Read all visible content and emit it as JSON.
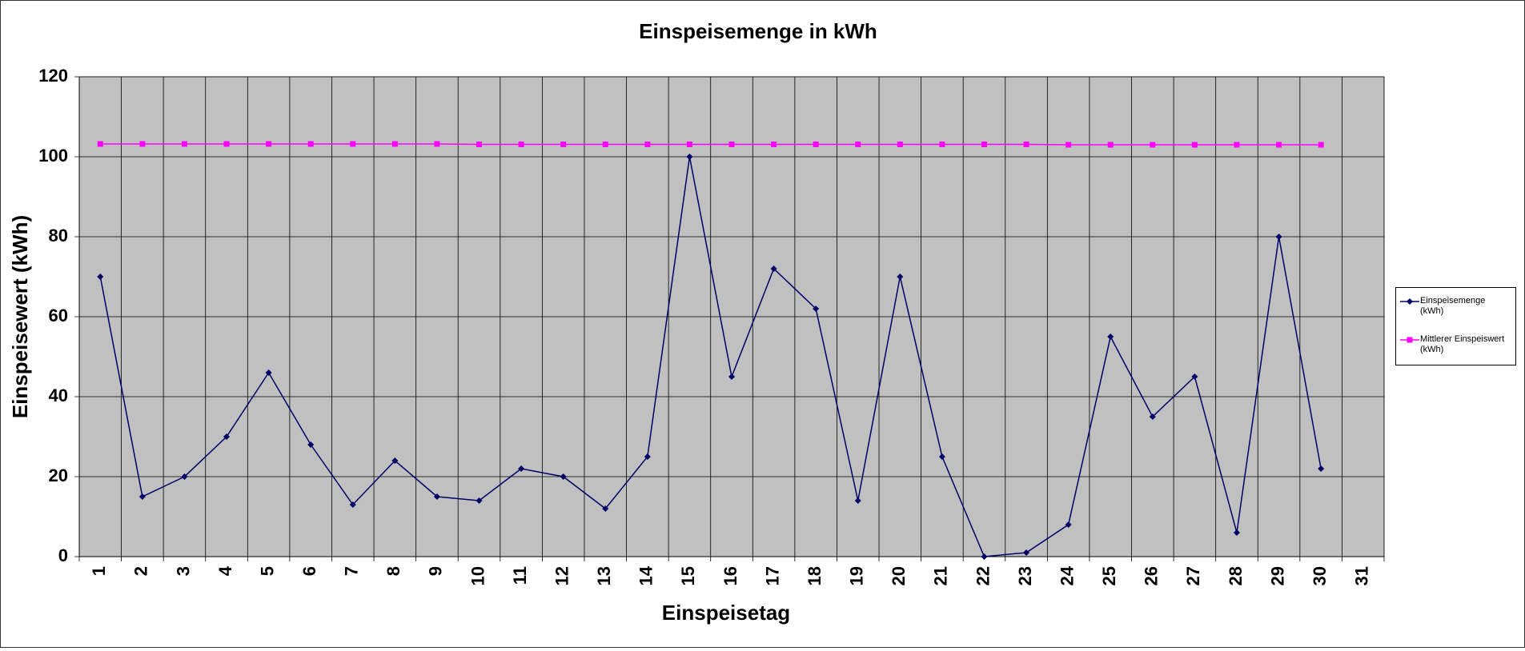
{
  "chart_data": {
    "type": "line",
    "title": "Einspeisemenge in kWh",
    "xlabel": "Einspeisetag",
    "ylabel": "Einspeisewert  (kWh)",
    "categories": [
      "1",
      "2",
      "3",
      "4",
      "5",
      "6",
      "7",
      "8",
      "9",
      "10",
      "11",
      "12",
      "13",
      "14",
      "15",
      "16",
      "17",
      "18",
      "19",
      "20",
      "21",
      "22",
      "23",
      "24",
      "25",
      "26",
      "27",
      "28",
      "29",
      "30",
      "31"
    ],
    "series": [
      {
        "name": "Einspeisemenge (kWh)",
        "color": "#000066",
        "marker": "diamond",
        "values": [
          70,
          15,
          20,
          30,
          46,
          28,
          13,
          24,
          15,
          14,
          22,
          20,
          12,
          25,
          100,
          45,
          72,
          62,
          14,
          70,
          25,
          0,
          1,
          8,
          55,
          35,
          45,
          6,
          80,
          22,
          null
        ]
      },
      {
        "name": "Mittlerer Einspeiswert (kWh)",
        "color": "#ff00ff",
        "marker": "square",
        "values": [
          103.2,
          103.2,
          103.2,
          103.2,
          103.2,
          103.2,
          103.2,
          103.2,
          103.2,
          103.1,
          103.1,
          103.1,
          103.1,
          103.1,
          103.1,
          103.1,
          103.1,
          103.1,
          103.1,
          103.1,
          103.1,
          103.1,
          103.1,
          103.0,
          103.0,
          103.0,
          103.0,
          103.0,
          103.0,
          103.0,
          null
        ]
      }
    ],
    "ylim": [
      0,
      120
    ],
    "yticks": [
      0,
      20,
      40,
      60,
      80,
      100,
      120
    ],
    "grid": true,
    "legend": "right"
  }
}
